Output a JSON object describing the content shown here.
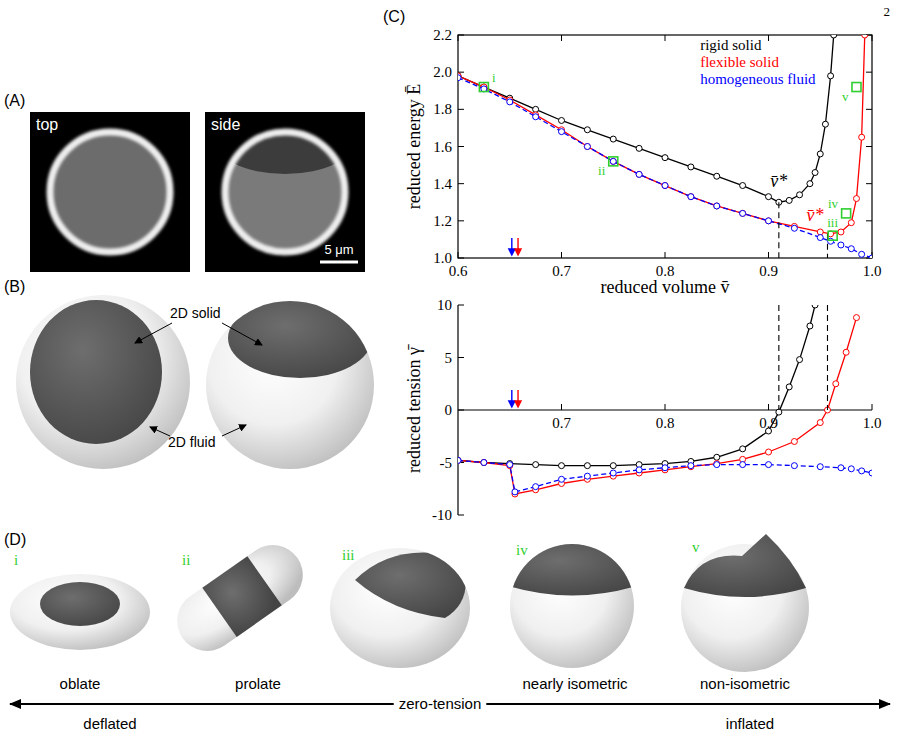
{
  "page_number": "2",
  "panel_a": {
    "label": "(A)",
    "images": [
      {
        "caption": "top"
      },
      {
        "caption": "side"
      }
    ],
    "scale_bar": "5 μm"
  },
  "panel_b": {
    "label": "(B)",
    "solid_label": "2D solid",
    "fluid_label": "2D fluid"
  },
  "chart_data": [
    {
      "type": "line",
      "panel_label": "(C)",
      "x_label": "reduced volume v̄",
      "y_label": "reduced energy Ē",
      "xlim": [
        0.6,
        1.0
      ],
      "xticks": [
        0.6,
        0.7,
        0.8,
        0.9,
        {
          "value": 1,
          "label": "1.0"
        }
      ],
      "ylim": [
        1.0,
        2.2
      ],
      "yticks": [
        {
          "value": 1,
          "label": "1.0"
        },
        1.2,
        1.4,
        1.6,
        1.8,
        {
          "value": 2,
          "label": "2.0"
        },
        2.2
      ],
      "legend": "upper right",
      "series": [
        {
          "name": "rigid solid",
          "color": "#000000",
          "marker": "circle",
          "line_style": "solid",
          "x": [
            0.6,
            0.625,
            0.65,
            0.675,
            0.7,
            0.725,
            0.75,
            0.775,
            0.8,
            0.825,
            0.85,
            0.875,
            0.9,
            0.91,
            0.92,
            0.93,
            0.94,
            0.945,
            0.95,
            0.955,
            0.96,
            0.963
          ],
          "values": [
            1.98,
            1.92,
            1.86,
            1.8,
            1.74,
            1.69,
            1.64,
            1.59,
            1.54,
            1.49,
            1.44,
            1.39,
            1.33,
            1.3,
            1.31,
            1.34,
            1.4,
            1.46,
            1.56,
            1.72,
            1.98,
            2.2
          ]
        },
        {
          "name": "flexible solid",
          "color": "#ff0000",
          "marker": "circle",
          "line_style": "solid",
          "x": [
            0.6,
            0.625,
            0.65,
            0.675,
            0.7,
            0.725,
            0.75,
            0.775,
            0.8,
            0.825,
            0.85,
            0.875,
            0.9,
            0.925,
            0.95,
            0.96,
            0.97,
            0.98,
            0.985,
            0.99,
            0.993
          ],
          "values": [
            1.98,
            1.92,
            1.85,
            1.77,
            1.69,
            1.6,
            1.52,
            1.45,
            1.39,
            1.33,
            1.28,
            1.24,
            1.2,
            1.17,
            1.14,
            1.13,
            1.14,
            1.19,
            1.32,
            1.65,
            2.2
          ]
        },
        {
          "name": "homogeneous fluid",
          "color": "#0000ff",
          "marker": "circle",
          "line_style": "dashed",
          "x": [
            0.6,
            0.625,
            0.65,
            0.675,
            0.7,
            0.725,
            0.75,
            0.775,
            0.8,
            0.825,
            0.85,
            0.875,
            0.9,
            0.925,
            0.95,
            0.96,
            0.97,
            0.98,
            0.99,
            1.0
          ],
          "values": [
            1.97,
            1.91,
            1.84,
            1.76,
            1.68,
            1.6,
            1.52,
            1.45,
            1.39,
            1.33,
            1.28,
            1.24,
            1.2,
            1.16,
            1.11,
            1.09,
            1.07,
            1.05,
            1.02,
            1.0
          ]
        }
      ],
      "annotations": [
        {
          "text": "v̄*",
          "x": 0.91,
          "y": 1.38,
          "color": "#000000"
        },
        {
          "text": "v̄*",
          "x": 0.945,
          "y": 1.2,
          "color": "#ff0000"
        }
      ],
      "highlights": [
        {
          "label": "i",
          "x": 0.625,
          "y": 1.92
        },
        {
          "label": "ii",
          "x": 0.75,
          "y": 1.52
        },
        {
          "label": "iii",
          "x": 0.962,
          "y": 1.12
        },
        {
          "label": "iv",
          "x": 0.975,
          "y": 1.24
        },
        {
          "label": "v",
          "x": 0.985,
          "y": 1.92
        }
      ],
      "arrows": [
        {
          "x": 0.652,
          "color": "#0000ff"
        },
        {
          "x": 0.658,
          "color": "#ff0000"
        }
      ],
      "vlines": [
        {
          "x": 0.91,
          "energy": 1.3,
          "tension": 0
        },
        {
          "x": 0.957,
          "energy": 1.13,
          "tension": 0
        }
      ]
    },
    {
      "type": "line",
      "y_label": "reduced tension γ̄",
      "xlim": [
        0.6,
        1.0
      ],
      "xticks": [
        0.7,
        0.8,
        0.9,
        {
          "value": 1,
          "label": "1.0"
        }
      ],
      "ylim": [
        -10,
        10
      ],
      "yticks": [
        -10,
        -5,
        0,
        5,
        10
      ],
      "series": [
        {
          "color": "#000000",
          "marker": "circle",
          "line_style": "solid",
          "x": [
            0.6,
            0.625,
            0.65,
            0.675,
            0.7,
            0.725,
            0.75,
            0.775,
            0.8,
            0.825,
            0.85,
            0.875,
            0.9,
            0.91,
            0.92,
            0.93,
            0.94,
            0.945
          ],
          "values": [
            -4.8,
            -5.0,
            -5.1,
            -5.2,
            -5.3,
            -5.3,
            -5.3,
            -5.2,
            -5.1,
            -4.9,
            -4.5,
            -3.7,
            -2.0,
            -0.2,
            2.2,
            4.8,
            8.0,
            10
          ]
        },
        {
          "color": "#ff0000",
          "marker": "circle",
          "line_style": "solid",
          "x": [
            0.6,
            0.625,
            0.65,
            0.655,
            0.675,
            0.7,
            0.725,
            0.75,
            0.775,
            0.8,
            0.825,
            0.85,
            0.875,
            0.9,
            0.925,
            0.95,
            0.957,
            0.965,
            0.975,
            0.985
          ],
          "values": [
            -4.8,
            -5.0,
            -5.3,
            -8.0,
            -7.6,
            -7.0,
            -6.6,
            -6.3,
            -6.0,
            -5.7,
            -5.4,
            -5.1,
            -4.7,
            -4.0,
            -3.0,
            -1.2,
            0,
            2.5,
            5.5,
            8.8
          ]
        },
        {
          "color": "#0000ff",
          "marker": "circle",
          "line_style": "dashed",
          "x": [
            0.6,
            0.625,
            0.65,
            0.655,
            0.675,
            0.7,
            0.725,
            0.75,
            0.775,
            0.8,
            0.825,
            0.85,
            0.875,
            0.9,
            0.925,
            0.95,
            0.97,
            0.98,
            0.99,
            1.0
          ],
          "values": [
            -4.8,
            -5.0,
            -5.2,
            -7.8,
            -7.3,
            -6.6,
            -6.3,
            -6.0,
            -5.7,
            -5.5,
            -5.3,
            -5.2,
            -5.2,
            -5.2,
            -5.3,
            -5.4,
            -5.5,
            -5.6,
            -5.8,
            -6.0
          ]
        }
      ],
      "arrows": [
        {
          "x": 0.652,
          "color": "#0000ff"
        },
        {
          "x": 0.658,
          "color": "#ff0000"
        }
      ]
    }
  ],
  "panel_d": {
    "label": "(D)",
    "shapes": [
      {
        "numeral": "i",
        "caption": "oblate"
      },
      {
        "numeral": "ii",
        "caption": "prolate"
      },
      {
        "numeral": "iii"
      },
      {
        "numeral": "iv",
        "caption": "nearly isometric"
      },
      {
        "numeral": "v",
        "caption": "non-isometric"
      }
    ],
    "axis": {
      "center": "zero-tension",
      "left": "deflated",
      "right": "inflated"
    }
  }
}
